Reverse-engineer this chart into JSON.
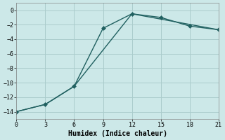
{
  "xlabel": "Humidex (Indice chaleur)",
  "ylabel": "",
  "bg_color": "#cce8e8",
  "grid_color": "#aacccc",
  "line_color": "#206060",
  "series1_x": [
    0,
    3,
    6,
    9,
    12,
    15,
    18,
    21
  ],
  "series1_y": [
    -14,
    -13,
    -10.5,
    -2.5,
    -0.5,
    -1.0,
    -2.2,
    -2.7
  ],
  "series2_x": [
    0,
    3,
    6,
    12,
    21
  ],
  "series2_y": [
    -14,
    -13,
    -10.5,
    -0.5,
    -2.7
  ],
  "xlim": [
    0,
    21
  ],
  "ylim": [
    -15,
    1
  ],
  "xticks": [
    0,
    3,
    6,
    9,
    12,
    15,
    18,
    21
  ],
  "yticks": [
    0,
    -2,
    -4,
    -6,
    -8,
    -10,
    -12,
    -14
  ],
  "markersize": 3,
  "linewidth": 1.0,
  "label_fontsize": 7,
  "tick_fontsize": 6
}
